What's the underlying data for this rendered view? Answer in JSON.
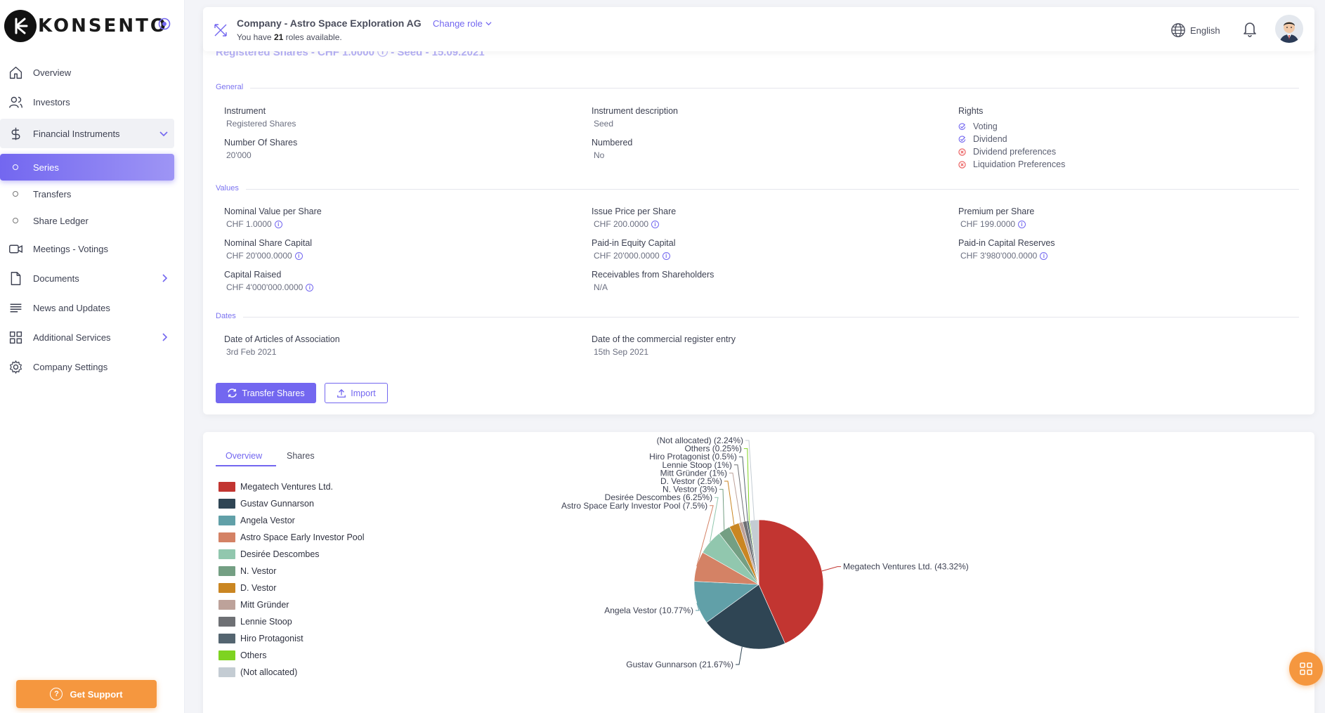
{
  "brand": {
    "name": "KONSENTO"
  },
  "sidebar": {
    "items": [
      {
        "label": "Overview",
        "icon": "home-icon"
      },
      {
        "label": "Investors",
        "icon": "users-icon"
      },
      {
        "label": "Financial Instruments",
        "icon": "dollar-icon"
      }
    ],
    "sub_items": [
      {
        "label": "Series",
        "active": true
      },
      {
        "label": "Transfers"
      },
      {
        "label": "Share Ledger"
      }
    ],
    "items_after": [
      {
        "label": "Meetings - Votings",
        "icon": "video-icon"
      },
      {
        "label": "Documents",
        "icon": "file-icon"
      },
      {
        "label": "News and Updates",
        "icon": "list-icon"
      },
      {
        "label": "Additional Services",
        "icon": "grid-icon"
      },
      {
        "label": "Company Settings",
        "icon": "gear-icon"
      }
    ],
    "support_label": "Get Support"
  },
  "header": {
    "company_title": "Company - Astro Space Exploration AG",
    "change_role": "Change role",
    "roles_prefix": "You have",
    "roles_count": "21",
    "roles_suffix": "roles available.",
    "language": "English"
  },
  "details": {
    "title": "Registered Shares - CHF 1.0000 ⓘ - Seed - 15.09.2021",
    "sections": {
      "general": "General",
      "values": "Values",
      "dates": "Dates"
    },
    "general": {
      "instrument_label": "Instrument",
      "instrument_value": "Registered Shares",
      "description_label": "Instrument description",
      "description_value": "Seed",
      "shares_label": "Number Of Shares",
      "shares_value": "20'000",
      "numbered_label": "Numbered",
      "numbered_value": "No",
      "rights_label": "Rights",
      "rights": [
        {
          "label": "Voting",
          "enabled": true
        },
        {
          "label": "Dividend",
          "enabled": true
        },
        {
          "label": "Dividend preferences",
          "enabled": false
        },
        {
          "label": "Liquidation Preferences",
          "enabled": false
        }
      ]
    },
    "values": {
      "nominal_label": "Nominal Value per Share",
      "nominal_value": "CHF 1.0000",
      "issue_label": "Issue Price per Share",
      "issue_value": "CHF 200.0000",
      "premium_label": "Premium per Share",
      "premium_value": "CHF 199.0000",
      "nsc_label": "Nominal Share Capital",
      "nsc_value": "CHF 20'000.0000",
      "pec_label": "Paid-in Equity Capital",
      "pec_value": "CHF 20'000.0000",
      "pcr_label": "Paid-in Capital Reserves",
      "pcr_value": "CHF 3'980'000.0000",
      "raised_label": "Capital Raised",
      "raised_value": "CHF 4'000'000.0000",
      "recv_label": "Receivables from Shareholders",
      "recv_value": "N/A"
    },
    "dates": {
      "articles_label": "Date of Articles of Association",
      "articles_value": "3rd Feb 2021",
      "register_label": "Date of the commercial register entry",
      "register_value": "15th Sep 2021"
    },
    "buttons": {
      "transfer": "Transfer Shares",
      "import": "Import"
    }
  },
  "chart_tabs": {
    "overview": "Overview",
    "shares": "Shares"
  },
  "chart_data": {
    "type": "pie",
    "slices": [
      {
        "name": "Megatech Ventures Ltd.",
        "value": 43.32,
        "label": "Megatech Ventures Ltd. (43.32%)",
        "color": "#c23531"
      },
      {
        "name": "Gustav Gunnarson",
        "value": 21.67,
        "label": "Gustav Gunnarson (21.67%)",
        "color": "#2f4554"
      },
      {
        "name": "Angela Vestor",
        "value": 10.77,
        "label": "Angela Vestor (10.77%)",
        "color": "#61a0a8"
      },
      {
        "name": "Astro Space Early Investor Pool",
        "value": 7.5,
        "label": "Astro Space Early Investor Pool (7.5%)",
        "color": "#d48265"
      },
      {
        "name": "Desirée Descombes",
        "value": 6.25,
        "label": "Desirée Descombes (6.25%)",
        "color": "#91c7ae"
      },
      {
        "name": "N. Vestor",
        "value": 3,
        "label": "N. Vestor (3%)",
        "color": "#749f83"
      },
      {
        "name": "D. Vestor",
        "value": 2.5,
        "label": "D. Vestor (2.5%)",
        "color": "#ca8622"
      },
      {
        "name": "Mitt Gründer",
        "value": 1,
        "label": "Mitt Gründer (1%)",
        "color": "#bda29a"
      },
      {
        "name": "Lennie Stoop",
        "value": 1,
        "label": "Lennie Stoop (1%)",
        "color": "#6e7074"
      },
      {
        "name": "Hiro Protagonist",
        "value": 0.5,
        "label": "Hiro Protagonist (0.5%)",
        "color": "#546570"
      },
      {
        "name": "Others",
        "value": 0.25,
        "label": "Others (0.25%)",
        "color": "#7ed321"
      },
      {
        "name": "(Not allocated)",
        "value": 2.24,
        "label": "(Not allocated) (2.24%)",
        "color": "#c4ccd3"
      }
    ]
  }
}
